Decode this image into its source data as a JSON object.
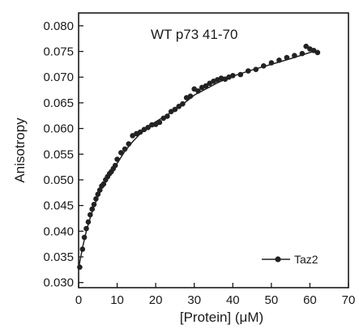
{
  "chart_data": {
    "type": "scatter",
    "title": "WT p73 41-70",
    "xlabel": "[Protein] (μM)",
    "ylabel": "Anisotropy",
    "xlim": [
      0,
      70
    ],
    "ylim": [
      0.029,
      0.0825
    ],
    "x_ticks": [
      0,
      10,
      20,
      30,
      40,
      50,
      60,
      70
    ],
    "y_ticks": [
      0.03,
      0.035,
      0.04,
      0.045,
      0.05,
      0.055,
      0.06,
      0.065,
      0.07,
      0.075,
      0.08
    ],
    "x_tick_labels": [
      "0",
      "10",
      "20",
      "30",
      "40",
      "50",
      "60",
      "70"
    ],
    "y_tick_labels": [
      "0.030",
      "0.035",
      "0.040",
      "0.045",
      "0.050",
      "0.055",
      "0.060",
      "0.065",
      "0.070",
      "0.075",
      "0.080"
    ],
    "grid": false,
    "legend_position": "bottom-right",
    "series": [
      {
        "name": "Taz2",
        "color": "#222222",
        "marker": "circle",
        "x": [
          0.3,
          1.0,
          1.5,
          2.0,
          2.5,
          3.0,
          3.5,
          4.0,
          4.5,
          5.0,
          5.5,
          6.0,
          6.5,
          7.0,
          7.5,
          8.0,
          8.5,
          9.0,
          9.5,
          10.0,
          11.0,
          12.0,
          13.0,
          14.0,
          15.0,
          16.0,
          17.0,
          18.0,
          19.0,
          20.0,
          21.0,
          22.0,
          23.0,
          24.0,
          25.0,
          26.0,
          27.0,
          28.0,
          29.0,
          30.0,
          31.0,
          32.0,
          33.0,
          34.0,
          35.0,
          36.0,
          37.0,
          38.0,
          39.0,
          40.0,
          42.0,
          44.0,
          46.0,
          48.0,
          50.0,
          52.0,
          54.0,
          56.0,
          58.0,
          59.0,
          60.0,
          61.0,
          62.0
        ],
        "y": [
          0.033,
          0.0365,
          0.0388,
          0.0405,
          0.0418,
          0.0432,
          0.0443,
          0.0452,
          0.0463,
          0.0472,
          0.048,
          0.0488,
          0.0492,
          0.05,
          0.0506,
          0.0512,
          0.0516,
          0.0522,
          0.0528,
          0.054,
          0.0553,
          0.056,
          0.057,
          0.0586,
          0.059,
          0.0593,
          0.0598,
          0.0602,
          0.0607,
          0.0608,
          0.0612,
          0.062,
          0.0624,
          0.0633,
          0.0637,
          0.0643,
          0.0648,
          0.066,
          0.0663,
          0.0677,
          0.0673,
          0.068,
          0.0683,
          0.0688,
          0.0692,
          0.0695,
          0.0698,
          0.0696,
          0.07,
          0.0703,
          0.0705,
          0.0712,
          0.0715,
          0.0722,
          0.0728,
          0.0733,
          0.0738,
          0.0742,
          0.0746,
          0.076,
          0.0755,
          0.0752,
          0.0748
        ]
      }
    ],
    "fit_line": {
      "x": [
        0,
        1,
        2,
        3,
        4,
        5,
        6,
        7,
        8,
        9,
        10,
        12,
        14,
        16,
        18,
        20,
        22,
        25,
        28,
        30,
        33,
        36,
        40,
        45,
        50,
        55,
        60,
        62
      ],
      "y": [
        0.0328,
        0.0368,
        0.04,
        0.0426,
        0.0448,
        0.0467,
        0.0483,
        0.0497,
        0.051,
        0.0521,
        0.0532,
        0.0556,
        0.0574,
        0.059,
        0.0603,
        0.0613,
        0.0622,
        0.0636,
        0.0653,
        0.0665,
        0.0677,
        0.0689,
        0.0702,
        0.0714,
        0.0725,
        0.0736,
        0.0748,
        0.0752
      ]
    }
  }
}
